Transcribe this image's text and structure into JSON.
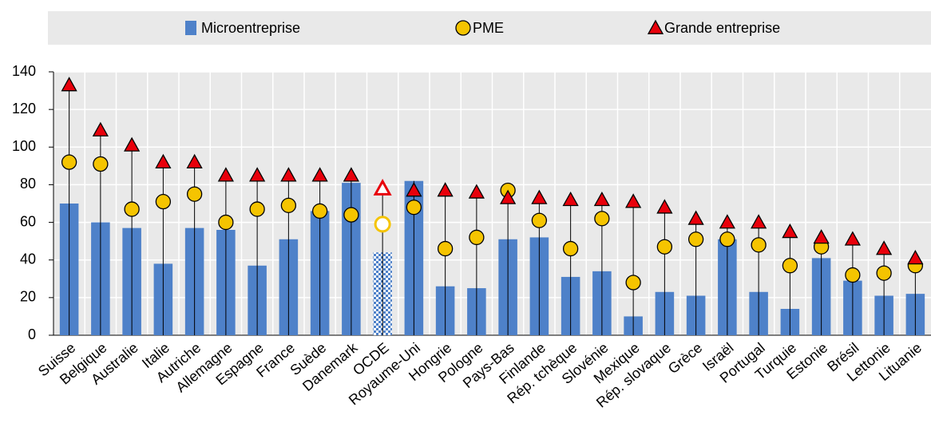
{
  "chart_data": {
    "type": "bar_dot",
    "categories": [
      "Suisse",
      "Belgique",
      "Australie",
      "Italie",
      "Autriche",
      "Allemagne",
      "Espagne",
      "France",
      "Suède",
      "Danemark",
      "OCDE",
      "Royaume-Uni",
      "Hongrie",
      "Pologne",
      "Pays-Bas",
      "Finlande",
      "Rép. tchèque",
      "Slovénie",
      "Mexique",
      "Rép. slovaque",
      "Grèce",
      "Israël",
      "Portugal",
      "Turquie",
      "Estonie",
      "Brésil",
      "Lettonie",
      "Lituanie"
    ],
    "highlight_categories": [
      "OCDE"
    ],
    "series": [
      {
        "name": "Microentreprise",
        "color": "#4e81c9",
        "mark": "bar",
        "values": [
          70,
          60,
          57,
          38,
          57,
          56,
          37,
          51,
          66,
          81,
          44,
          82,
          26,
          25,
          51,
          52,
          31,
          34,
          10,
          23,
          21,
          51,
          23,
          14,
          41,
          29,
          21,
          22
        ]
      },
      {
        "name": "PME",
        "color": "#f5c400",
        "mark": "circle",
        "values": [
          92,
          91,
          67,
          71,
          75,
          60,
          67,
          69,
          66,
          64,
          59,
          68,
          46,
          52,
          77,
          61,
          46,
          62,
          28,
          47,
          51,
          51,
          48,
          37,
          47,
          32,
          33,
          37
        ]
      },
      {
        "name": "Grande entreprise",
        "color": "#e8000b",
        "mark": "triangle",
        "values": [
          133,
          109,
          101,
          92,
          92,
          85,
          85,
          85,
          85,
          85,
          78,
          77,
          77,
          76,
          73,
          73,
          72,
          72,
          71,
          68,
          62,
          60,
          60,
          55,
          52,
          51,
          46,
          41
        ]
      }
    ],
    "ylim": [
      0,
      140
    ],
    "yticks": [
      0,
      20,
      40,
      60,
      80,
      100,
      120,
      140
    ],
    "grid": true
  }
}
